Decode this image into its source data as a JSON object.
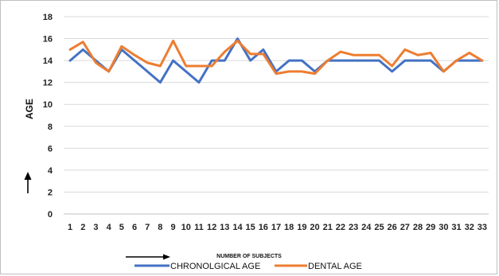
{
  "chart_data": {
    "type": "line",
    "xlabel": "NUMBER OF SUBJECTS",
    "ylabel": "AGE",
    "x": [
      1,
      2,
      3,
      4,
      5,
      6,
      7,
      8,
      9,
      10,
      11,
      12,
      13,
      14,
      15,
      16,
      17,
      18,
      19,
      20,
      21,
      22,
      23,
      24,
      25,
      26,
      27,
      28,
      29,
      30,
      31,
      32,
      33
    ],
    "ylim": [
      0,
      18
    ],
    "yticks": [
      0,
      2,
      4,
      6,
      8,
      10,
      12,
      14,
      16,
      18
    ],
    "grid": true,
    "legend_position": "bottom",
    "series": [
      {
        "name": "CHRONOLGICAL AGE",
        "color": "#4472c4",
        "values": [
          14,
          15,
          14,
          13,
          15,
          14,
          13,
          12,
          14,
          13,
          12,
          14,
          14,
          16,
          14,
          15,
          13,
          14,
          14,
          13,
          14,
          14,
          14,
          14,
          14,
          13,
          14,
          14,
          14,
          13,
          14,
          14,
          14
        ]
      },
      {
        "name": "DENTAL AGE",
        "color": "#ed7d31",
        "values": [
          15,
          15.7,
          13.8,
          13,
          15.3,
          14.5,
          13.8,
          13.5,
          15.8,
          13.5,
          13.5,
          13.5,
          14.8,
          15.8,
          14.6,
          14.6,
          12.8,
          13,
          13,
          12.8,
          14,
          14.8,
          14.5,
          14.5,
          14.5,
          13.5,
          15,
          14.5,
          14.7,
          13,
          14,
          14.7,
          14
        ]
      }
    ]
  }
}
